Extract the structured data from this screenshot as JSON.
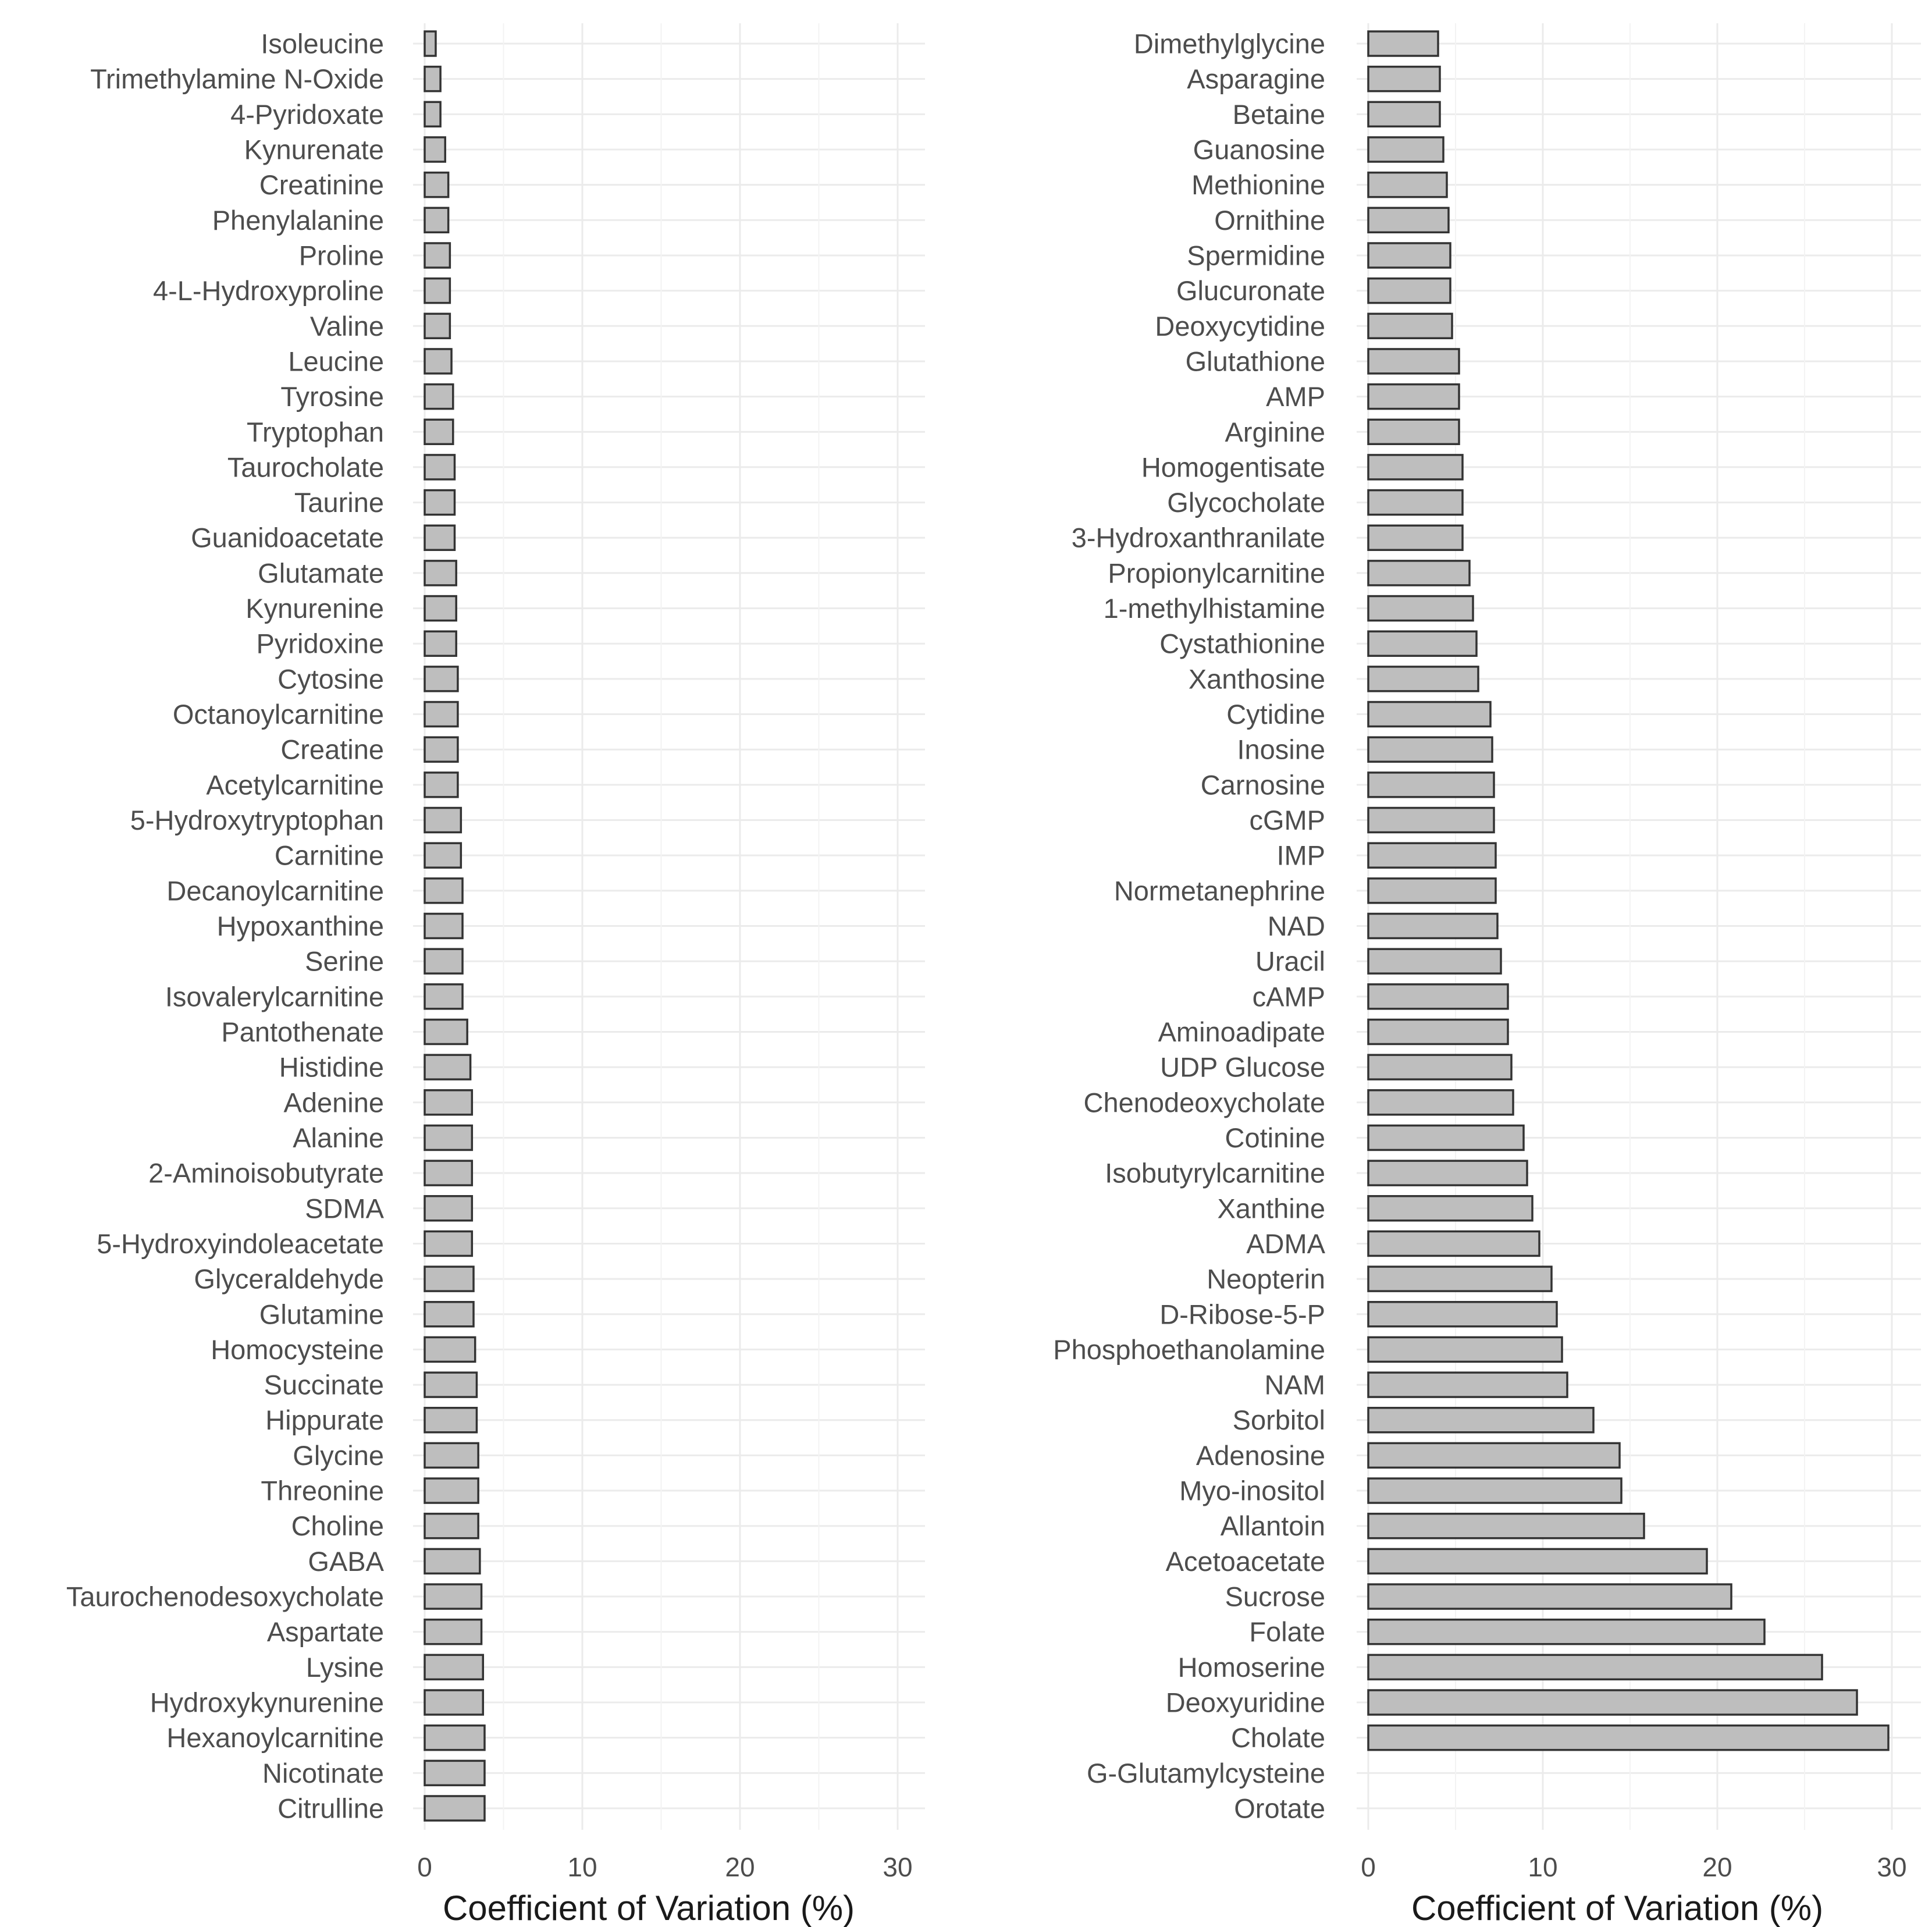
{
  "chart_data": [
    {
      "type": "bar",
      "orientation": "horizontal",
      "xlabel": "Coefficient of Variation (%)",
      "xlim": [
        0,
        30
      ],
      "xticks": [
        "0",
        "10",
        "20",
        "30"
      ],
      "categories": [
        "Isoleucine",
        "Trimethylamine N-Oxide",
        "4-Pyridoxate",
        "Kynurenate",
        "Creatinine",
        "Phenylalanine",
        "Proline",
        "4-L-Hydroxyproline",
        "Valine",
        "Leucine",
        "Tyrosine",
        "Tryptophan",
        "Taurocholate",
        "Taurine",
        "Guanidoacetate",
        "Glutamate",
        "Kynurenine",
        "Pyridoxine",
        "Cytosine",
        "Octanoylcarnitine",
        "Creatine",
        "Acetylcarnitine",
        "5-Hydroxytryptophan",
        "Carnitine",
        "Decanoylcarnitine",
        "Hypoxanthine",
        "Serine",
        "Isovalerylcarnitine",
        "Pantothenate",
        "Histidine",
        "Adenine",
        "Alanine",
        "2-Aminoisobutyrate",
        "SDMA",
        "5-Hydroxyindoleacetate",
        "Glyceraldehyde",
        "Glutamine",
        "Homocysteine",
        "Succinate",
        "Hippurate",
        "Glycine",
        "Threonine",
        "Choline",
        "GABA",
        "Taurochenodesoxycholate",
        "Aspartate",
        "Lysine",
        "Hydroxykynurenine",
        "Hexanoylcarnitine",
        "Nicotinate",
        "Citrulline"
      ],
      "values": [
        0.7,
        1.0,
        1.0,
        1.3,
        1.5,
        1.5,
        1.6,
        1.6,
        1.6,
        1.7,
        1.8,
        1.8,
        1.9,
        1.9,
        1.9,
        2.0,
        2.0,
        2.0,
        2.1,
        2.1,
        2.1,
        2.1,
        2.3,
        2.3,
        2.4,
        2.4,
        2.4,
        2.4,
        2.7,
        2.9,
        3.0,
        3.0,
        3.0,
        3.0,
        3.0,
        3.1,
        3.1,
        3.2,
        3.3,
        3.3,
        3.4,
        3.4,
        3.4,
        3.5,
        3.6,
        3.6,
        3.7,
        3.7,
        3.8,
        3.8,
        3.8
      ]
    },
    {
      "type": "bar",
      "orientation": "horizontal",
      "xlabel": "Coefficient of Variation (%)",
      "xlim": [
        0,
        30
      ],
      "xticks": [
        "0",
        "10",
        "20",
        "30"
      ],
      "categories": [
        "Dimethylglycine",
        "Asparagine",
        "Betaine",
        "Guanosine",
        "Methionine",
        "Ornithine",
        "Spermidine",
        "Glucuronate",
        "Deoxycytidine",
        "Glutathione",
        "AMP",
        "Arginine",
        "Homogentisate",
        "Glycocholate",
        "3-Hydroxanthranilate",
        "Propionylcarnitine",
        "1-methylhistamine",
        "Cystathionine",
        "Xanthosine",
        "Cytidine",
        "Inosine",
        "Carnosine",
        "cGMP",
        "IMP",
        "Normetanephrine",
        "NAD",
        "Uracil",
        "cAMP",
        "Aminoadipate",
        "UDP Glucose",
        "Chenodeoxycholate",
        "Cotinine",
        "Isobutyrylcarnitine",
        "Xanthine",
        "ADMA",
        "Neopterin",
        "D-Ribose-5-P",
        "Phosphoethanolamine",
        "NAM",
        "Sorbitol",
        "Adenosine",
        "Myo-inositol",
        "Allantoin",
        "Acetoacetate",
        "Sucrose",
        "Folate",
        "Homoserine",
        "Deoxyuridine",
        "Cholate",
        "G-Glutamylcysteine",
        "Orotate"
      ],
      "values": [
        4.0,
        4.1,
        4.1,
        4.3,
        4.5,
        4.6,
        4.7,
        4.7,
        4.8,
        5.2,
        5.2,
        5.2,
        5.4,
        5.4,
        5.4,
        5.8,
        6.0,
        6.2,
        6.3,
        7.0,
        7.1,
        7.2,
        7.2,
        7.3,
        7.3,
        7.4,
        7.6,
        8.0,
        8.0,
        8.2,
        8.3,
        8.9,
        9.1,
        9.4,
        9.8,
        10.5,
        10.8,
        11.1,
        11.4,
        12.9,
        14.4,
        14.5,
        15.8,
        19.4,
        20.8,
        22.7,
        26.0,
        28.0,
        29.8,
        null,
        null
      ]
    }
  ]
}
